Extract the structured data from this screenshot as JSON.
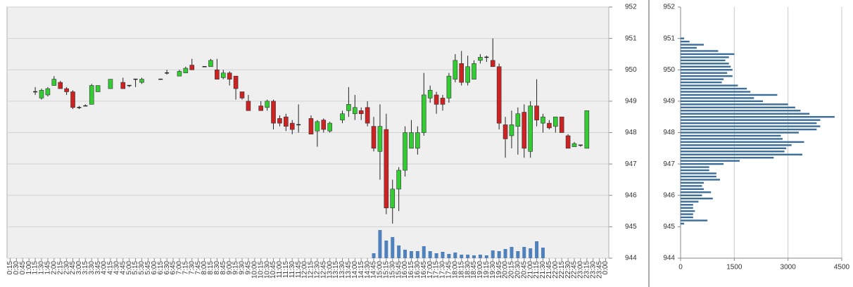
{
  "chart_data": [
    {
      "type": "candlestick",
      "categories": [
        "0:15",
        "0:30",
        "0:45",
        "1:00",
        "1:15",
        "1:30",
        "1:45",
        "2:00",
        "2:15",
        "2:30",
        "2:45",
        "3:00",
        "3:15",
        "3:30",
        "3:45",
        "4:00",
        "4:15",
        "4:30",
        "4:45",
        "5:00",
        "5:15",
        "5:30",
        "5:45",
        "6:00",
        "6:15",
        "6:30",
        "6:45",
        "7:00",
        "7:15",
        "7:30",
        "7:45",
        "8:00",
        "8:15",
        "8:30",
        "8:45",
        "9:00",
        "9:15",
        "9:30",
        "9:45",
        "10:00",
        "10:15",
        "10:30",
        "10:45",
        "11:00",
        "11:15",
        "11:30",
        "11:45",
        "12:00",
        "12:15",
        "12:30",
        "12:45",
        "13:00",
        "13:15",
        "13:30",
        "13:45",
        "14:00",
        "14:15",
        "14:30",
        "14:45",
        "15:00",
        "15:15",
        "15:30",
        "15:45",
        "16:00",
        "16:15",
        "16:30",
        "16:45",
        "17:00",
        "17:15",
        "17:30",
        "17:45",
        "18:00",
        "18:15",
        "18:30",
        "18:45",
        "19:00",
        "19:15",
        "19:30",
        "19:45",
        "20:00",
        "20:15",
        "20:30",
        "20:45",
        "21:00",
        "21:15",
        "21:30",
        "21:45",
        "22:00",
        "22:15",
        "22:30",
        "22:45",
        "23:00",
        "23:15",
        "23:30",
        "23:45",
        "0:00"
      ],
      "open": [
        null,
        null,
        null,
        null,
        949.3,
        949.1,
        949.2,
        949.5,
        949.6,
        949.4,
        949.3,
        948.8,
        948.85,
        948.9,
        949.3,
        null,
        949.4,
        null,
        949.6,
        949.5,
        949.7,
        949.6,
        null,
        null,
        949.7,
        949.9,
        null,
        949.8,
        949.9,
        950.15,
        null,
        950.1,
        950.1,
        950.0,
        949.75,
        949.9,
        949.8,
        949.3,
        949.0,
        null,
        948.85,
        948.8,
        949.0,
        948.45,
        948.5,
        948.3,
        948.25,
        null,
        948.45,
        948.05,
        948.4,
        948.05,
        null,
        948.4,
        948.7,
        948.6,
        948.7,
        948.8,
        948.2,
        947.4,
        948.1,
        945.6,
        946.2,
        946.8,
        947.5,
        947.5,
        948.0,
        949.1,
        949.2,
        949.1,
        949.1,
        949.7,
        950.2,
        949.6,
        949.7,
        950.3,
        950.4,
        950.3,
        950.1,
        948.25,
        947.9,
        948.2,
        948.65,
        947.4,
        948.85,
        948.3,
        948.3,
        948.2,
        948.5,
        947.9,
        947.55,
        947.6,
        947.5,
        null,
        null,
        null
      ],
      "high": [
        null,
        null,
        null,
        null,
        949.45,
        949.4,
        949.45,
        949.8,
        949.65,
        949.45,
        949.35,
        948.85,
        948.9,
        949.55,
        949.5,
        null,
        949.7,
        null,
        949.75,
        949.5,
        949.7,
        949.75,
        null,
        null,
        949.7,
        950.0,
        null,
        950.0,
        950.1,
        950.35,
        null,
        950.1,
        950.35,
        950.35,
        950.0,
        949.95,
        949.8,
        949.3,
        949.2,
        null,
        949.0,
        949.05,
        949.05,
        948.55,
        948.6,
        948.4,
        948.9,
        null,
        948.55,
        948.4,
        948.45,
        948.35,
        null,
        948.7,
        949.45,
        949.2,
        948.8,
        949.0,
        948.5,
        948.9,
        948.6,
        946.5,
        946.9,
        948.2,
        948.4,
        948.2,
        949.9,
        949.5,
        949.3,
        949.2,
        949.9,
        950.5,
        950.6,
        950.45,
        950.3,
        950.5,
        950.45,
        951.0,
        950.2,
        948.5,
        948.7,
        948.8,
        948.9,
        949.0,
        949.7,
        948.6,
        948.4,
        948.5,
        948.5,
        947.95,
        947.7,
        947.6,
        948.7,
        null,
        null,
        null
      ],
      "low": [
        null,
        null,
        null,
        null,
        949.2,
        949.05,
        949.15,
        949.5,
        949.4,
        949.2,
        948.75,
        948.75,
        948.85,
        948.9,
        949.3,
        null,
        949.4,
        null,
        949.4,
        949.45,
        949.45,
        949.55,
        null,
        null,
        949.7,
        949.85,
        null,
        949.8,
        949.9,
        950.0,
        null,
        950.1,
        950.1,
        949.7,
        949.7,
        949.5,
        949.05,
        949.05,
        948.7,
        null,
        948.7,
        948.7,
        948.1,
        948.2,
        948.05,
        947.95,
        948.0,
        null,
        947.95,
        947.55,
        948.0,
        948.0,
        null,
        948.3,
        948.5,
        948.4,
        948.4,
        948.2,
        947.4,
        946.5,
        945.4,
        945.1,
        945.5,
        946.6,
        947.5,
        947.3,
        947.9,
        948.95,
        948.6,
        948.7,
        948.95,
        949.6,
        949.5,
        949.5,
        949.7,
        950.2,
        950.25,
        950.1,
        948.1,
        947.2,
        947.5,
        947.3,
        947.2,
        947.2,
        948.2,
        948.0,
        948.1,
        948.0,
        948.0,
        947.5,
        947.55,
        947.55,
        947.5,
        null,
        null,
        null
      ],
      "close": [
        null,
        null,
        null,
        null,
        949.3,
        949.35,
        949.4,
        949.7,
        949.4,
        949.3,
        948.8,
        948.8,
        948.85,
        949.5,
        949.5,
        null,
        949.7,
        null,
        949.4,
        949.5,
        949.7,
        949.7,
        null,
        null,
        949.7,
        949.9,
        null,
        949.95,
        950.05,
        950.0,
        null,
        950.1,
        950.3,
        949.7,
        949.9,
        949.7,
        949.4,
        949.1,
        948.7,
        null,
        948.7,
        949.0,
        948.3,
        948.3,
        948.2,
        948.1,
        948.25,
        null,
        947.95,
        948.35,
        948.1,
        948.3,
        null,
        948.6,
        948.9,
        948.8,
        948.6,
        948.3,
        947.5,
        948.2,
        945.6,
        946.2,
        946.8,
        948.0,
        948.0,
        948.0,
        949.2,
        949.35,
        948.9,
        948.9,
        949.8,
        950.3,
        949.6,
        950.1,
        950.2,
        950.4,
        950.4,
        950.1,
        948.3,
        947.8,
        948.25,
        948.6,
        947.5,
        948.85,
        948.4,
        948.5,
        948.15,
        948.5,
        948.0,
        947.5,
        947.65,
        947.6,
        948.7,
        null,
        null,
        null
      ],
      "volume": [
        null,
        null,
        null,
        null,
        null,
        null,
        null,
        null,
        null,
        null,
        null,
        null,
        null,
        null,
        null,
        null,
        null,
        null,
        null,
        null,
        null,
        null,
        null,
        null,
        null,
        null,
        null,
        null,
        null,
        null,
        null,
        null,
        null,
        null,
        null,
        null,
        null,
        null,
        null,
        null,
        null,
        null,
        null,
        null,
        null,
        null,
        null,
        null,
        null,
        null,
        null,
        null,
        null,
        null,
        null,
        null,
        null,
        null,
        7,
        40,
        25,
        30,
        18,
        12,
        10,
        10,
        17,
        10,
        7,
        9,
        6,
        8,
        5,
        5,
        4,
        5,
        4,
        11,
        10,
        13,
        16,
        10,
        16,
        14,
        24,
        15,
        null,
        null,
        null,
        null,
        null,
        null,
        null,
        null,
        null,
        null
      ],
      "up_color": "#33cc33",
      "down_color": "#cc2222",
      "volume_color": "#4f81bd",
      "ylim": [
        944,
        952
      ],
      "yticks": [
        944,
        945,
        946,
        947,
        948,
        949,
        950,
        951,
        952
      ],
      "grid": true
    },
    {
      "type": "barh",
      "y": [
        951.0,
        950.9,
        950.8,
        950.7,
        950.6,
        950.5,
        950.4,
        950.3,
        950.2,
        950.1,
        950.0,
        949.9,
        949.8,
        949.7,
        949.6,
        949.5,
        949.4,
        949.3,
        949.2,
        949.1,
        949.0,
        948.9,
        948.8,
        948.7,
        948.6,
        948.5,
        948.4,
        948.3,
        948.2,
        948.1,
        948.0,
        947.9,
        947.8,
        947.7,
        947.6,
        947.5,
        947.4,
        947.3,
        947.2,
        947.1,
        947.0,
        946.9,
        946.8,
        946.7,
        946.6,
        946.5,
        946.4,
        946.3,
        946.2,
        946.1,
        946.0,
        945.9,
        945.8,
        945.7,
        945.6,
        945.5,
        945.4,
        945.3,
        945.2,
        945.1
      ],
      "values": [
        100,
        250,
        650,
        450,
        1050,
        1500,
        1350,
        1250,
        1350,
        1400,
        1450,
        1300,
        1450,
        1200,
        1150,
        1600,
        1850,
        1950,
        2700,
        2050,
        2300,
        3000,
        3200,
        3350,
        3600,
        4300,
        3900,
        3800,
        3900,
        3800,
        3300,
        2800,
        2850,
        3450,
        3100,
        2950,
        2900,
        3400,
        2600,
        1650,
        1200,
        800,
        800,
        1000,
        1000,
        1100,
        650,
        600,
        650,
        850,
        600,
        900,
        500,
        350,
        350,
        400,
        350,
        350,
        750,
        100
      ],
      "color": "#3a6d9a",
      "xlim": [
        0,
        4500
      ],
      "xticks": [
        0,
        1500,
        3000,
        4500
      ],
      "ylim": [
        944,
        952
      ],
      "yticks": [
        944,
        945,
        946,
        947,
        948,
        949,
        950,
        951,
        952
      ],
      "grid": true
    }
  ]
}
